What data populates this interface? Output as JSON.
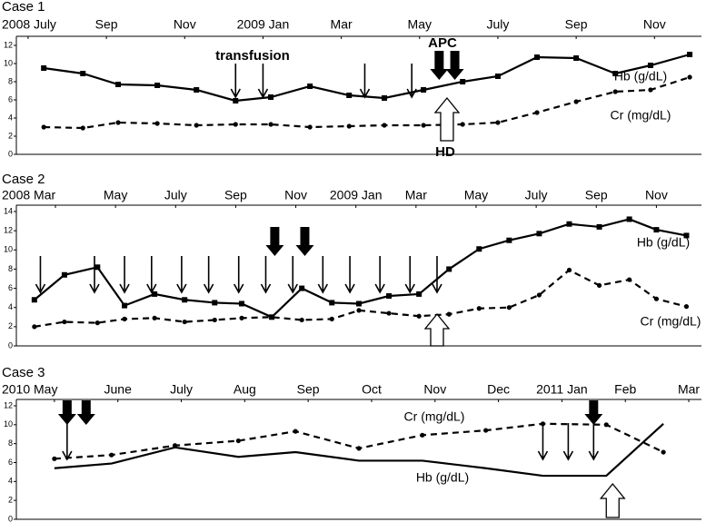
{
  "chart_data": [
    {
      "type": "line",
      "title": "Case 1",
      "xlim": [
        -0.3,
        17.2
      ],
      "xticks": [
        {
          "value": 0,
          "label": "2008 July"
        },
        {
          "value": 2,
          "label": "Sep"
        },
        {
          "value": 4,
          "label": "Nov"
        },
        {
          "value": 6,
          "label": "2009 Jan"
        },
        {
          "value": 8,
          "label": "Mar"
        },
        {
          "value": 10,
          "label": "May"
        },
        {
          "value": 12,
          "label": "July"
        },
        {
          "value": 14,
          "label": "Sep"
        },
        {
          "value": 16,
          "label": "Nov"
        }
      ],
      "ylim": [
        0,
        12
      ],
      "yticks": [
        0,
        2,
        4,
        6,
        8,
        10,
        12
      ],
      "series": [
        {
          "name": "Hb (g/dL)",
          "color": "#000000",
          "dash": "solid",
          "marker": "square",
          "x": [
            0.4,
            1.4,
            2.3,
            3.3,
            4.3,
            5.3,
            6.2,
            7.2,
            8.2,
            9.1,
            10.1,
            11.1,
            12.0,
            13.0,
            14.0,
            15.0,
            15.9,
            16.9
          ],
          "values": [
            9.5,
            8.9,
            7.7,
            7.6,
            7.1,
            5.9,
            6.3,
            7.5,
            6.5,
            6.2,
            7.1,
            8.0,
            8.6,
            10.7,
            10.6,
            8.9,
            9.8,
            11.0
          ]
        },
        {
          "name": "Cr (mg/dL)",
          "color": "#000000",
          "dash": "dashed",
          "marker": "circle",
          "x": [
            0.4,
            1.4,
            2.3,
            3.3,
            4.3,
            5.3,
            6.2,
            7.2,
            8.2,
            9.1,
            10.1,
            11.1,
            12.0,
            13.0,
            14.0,
            15.0,
            15.9,
            16.9
          ],
          "values": [
            3.0,
            2.9,
            3.5,
            3.4,
            3.2,
            3.3,
            3.3,
            3.0,
            3.1,
            3.2,
            3.2,
            3.3,
            3.5,
            4.6,
            5.8,
            6.9,
            7.1,
            8.5
          ]
        }
      ],
      "annotations": [
        {
          "label": "transfusion",
          "style": "thin",
          "x": [
            5.3,
            6.0,
            8.6,
            9.8
          ]
        },
        {
          "label": "APC",
          "style": "solid",
          "x": [
            10.5,
            10.9
          ]
        },
        {
          "label": "HD",
          "style": "hollow",
          "x": [
            10.7
          ]
        }
      ]
    },
    {
      "type": "line",
      "title": "Case 2",
      "xlim": [
        -1.3,
        21.5
      ],
      "xticks": [
        {
          "value": 0,
          "label": "2008 Mar"
        },
        {
          "value": 2,
          "label": "May"
        },
        {
          "value": 4,
          "label": "July"
        },
        {
          "value": 6,
          "label": "Sep"
        },
        {
          "value": 8,
          "label": "Nov"
        },
        {
          "value": 10,
          "label": "2009 Jan"
        },
        {
          "value": 12,
          "label": "Mar"
        },
        {
          "value": 14,
          "label": "May"
        },
        {
          "value": 16,
          "label": "July"
        },
        {
          "value": 18,
          "label": "Sep"
        },
        {
          "value": 20,
          "label": "Nov"
        }
      ],
      "ylim": [
        0,
        14
      ],
      "yticks": [
        0,
        2,
        4,
        6,
        8,
        10,
        12,
        14
      ],
      "series": [
        {
          "name": "Hb (g/dL)",
          "color": "#000000",
          "dash": "solid",
          "marker": "square",
          "x": [
            -0.7,
            0.3,
            1.4,
            2.3,
            3.3,
            4.3,
            5.3,
            6.2,
            7.2,
            8.2,
            9.2,
            10.1,
            11.1,
            12.1,
            13.1,
            14.1,
            15.1,
            16.1,
            17.1,
            18.1,
            19.1,
            20.0,
            21.0
          ],
          "values": [
            4.8,
            7.4,
            8.2,
            4.2,
            5.4,
            4.8,
            4.5,
            4.4,
            3.0,
            6.0,
            4.5,
            4.4,
            5.2,
            5.4,
            8.0,
            10.1,
            11.0,
            11.7,
            12.7,
            12.4,
            13.2,
            12.1,
            11.5
          ]
        },
        {
          "name": "Cr (mg/dL)",
          "color": "#000000",
          "dash": "dashed",
          "marker": "circle",
          "x": [
            -0.7,
            0.3,
            1.4,
            2.3,
            3.3,
            4.3,
            5.3,
            6.2,
            7.2,
            8.2,
            9.2,
            10.1,
            11.1,
            12.1,
            13.1,
            14.1,
            15.1,
            16.1,
            17.1,
            18.1,
            19.1,
            20.0,
            21.0
          ],
          "values": [
            2.0,
            2.5,
            2.4,
            2.8,
            2.9,
            2.5,
            2.7,
            2.9,
            3.0,
            2.7,
            2.8,
            3.7,
            3.4,
            3.1,
            3.3,
            3.9,
            4.0,
            5.3,
            7.9,
            6.3,
            6.9,
            4.9,
            4.1
          ]
        }
      ],
      "annotations": [
        {
          "style": "thin",
          "x": [
            -0.5,
            1.3,
            2.3,
            3.2,
            4.2,
            5.1,
            6.1,
            7.0,
            7.9,
            8.9,
            9.8,
            10.8,
            11.8,
            12.7
          ]
        },
        {
          "style": "solid",
          "x": [
            7.3,
            8.3
          ]
        },
        {
          "style": "hollow",
          "x": [
            12.7
          ]
        }
      ]
    },
    {
      "type": "line",
      "title": "Case 3",
      "xlim": [
        -0.6,
        10.2
      ],
      "xticks": [
        {
          "value": 0,
          "label": "2010 May"
        },
        {
          "value": 1,
          "label": "June"
        },
        {
          "value": 2,
          "label": "July"
        },
        {
          "value": 3,
          "label": "Aug"
        },
        {
          "value": 4,
          "label": "Sep"
        },
        {
          "value": 5,
          "label": "Oct"
        },
        {
          "value": 6,
          "label": "Nov"
        },
        {
          "value": 7,
          "label": "Dec"
        },
        {
          "value": 8,
          "label": "2011 Jan"
        },
        {
          "value": 9,
          "label": "Feb"
        },
        {
          "value": 10,
          "label": "Mar"
        }
      ],
      "ylim": [
        0,
        12
      ],
      "yticks": [
        0,
        2,
        4,
        6,
        8,
        10,
        12
      ],
      "series": [
        {
          "name": "Hb (g/dL)",
          "color": "#000000",
          "dash": "solid",
          "marker": "none",
          "x": [
            0.0,
            0.9,
            1.9,
            2.9,
            3.8,
            4.8,
            5.8,
            6.8,
            7.7,
            8.7,
            9.6
          ],
          "values": [
            5.4,
            5.9,
            7.6,
            6.6,
            7.1,
            6.2,
            6.2,
            5.4,
            4.6,
            4.6,
            10.1
          ]
        },
        {
          "name": "Cr (mg/dL)",
          "color": "#000000",
          "dash": "dashed",
          "marker": "circle",
          "x": [
            0.0,
            0.9,
            1.9,
            2.9,
            3.8,
            4.8,
            5.8,
            6.8,
            7.7,
            8.7,
            9.6
          ],
          "values": [
            6.4,
            6.8,
            7.8,
            8.3,
            9.3,
            7.5,
            8.9,
            9.4,
            10.1,
            10.0,
            7.1
          ]
        }
      ],
      "annotations": [
        {
          "style": "thin",
          "x": [
            0.2,
            7.7,
            8.1,
            8.5
          ]
        },
        {
          "style": "solid",
          "x": [
            0.2,
            0.5,
            8.5
          ]
        },
        {
          "style": "hollow",
          "x": [
            8.8
          ]
        }
      ]
    }
  ]
}
